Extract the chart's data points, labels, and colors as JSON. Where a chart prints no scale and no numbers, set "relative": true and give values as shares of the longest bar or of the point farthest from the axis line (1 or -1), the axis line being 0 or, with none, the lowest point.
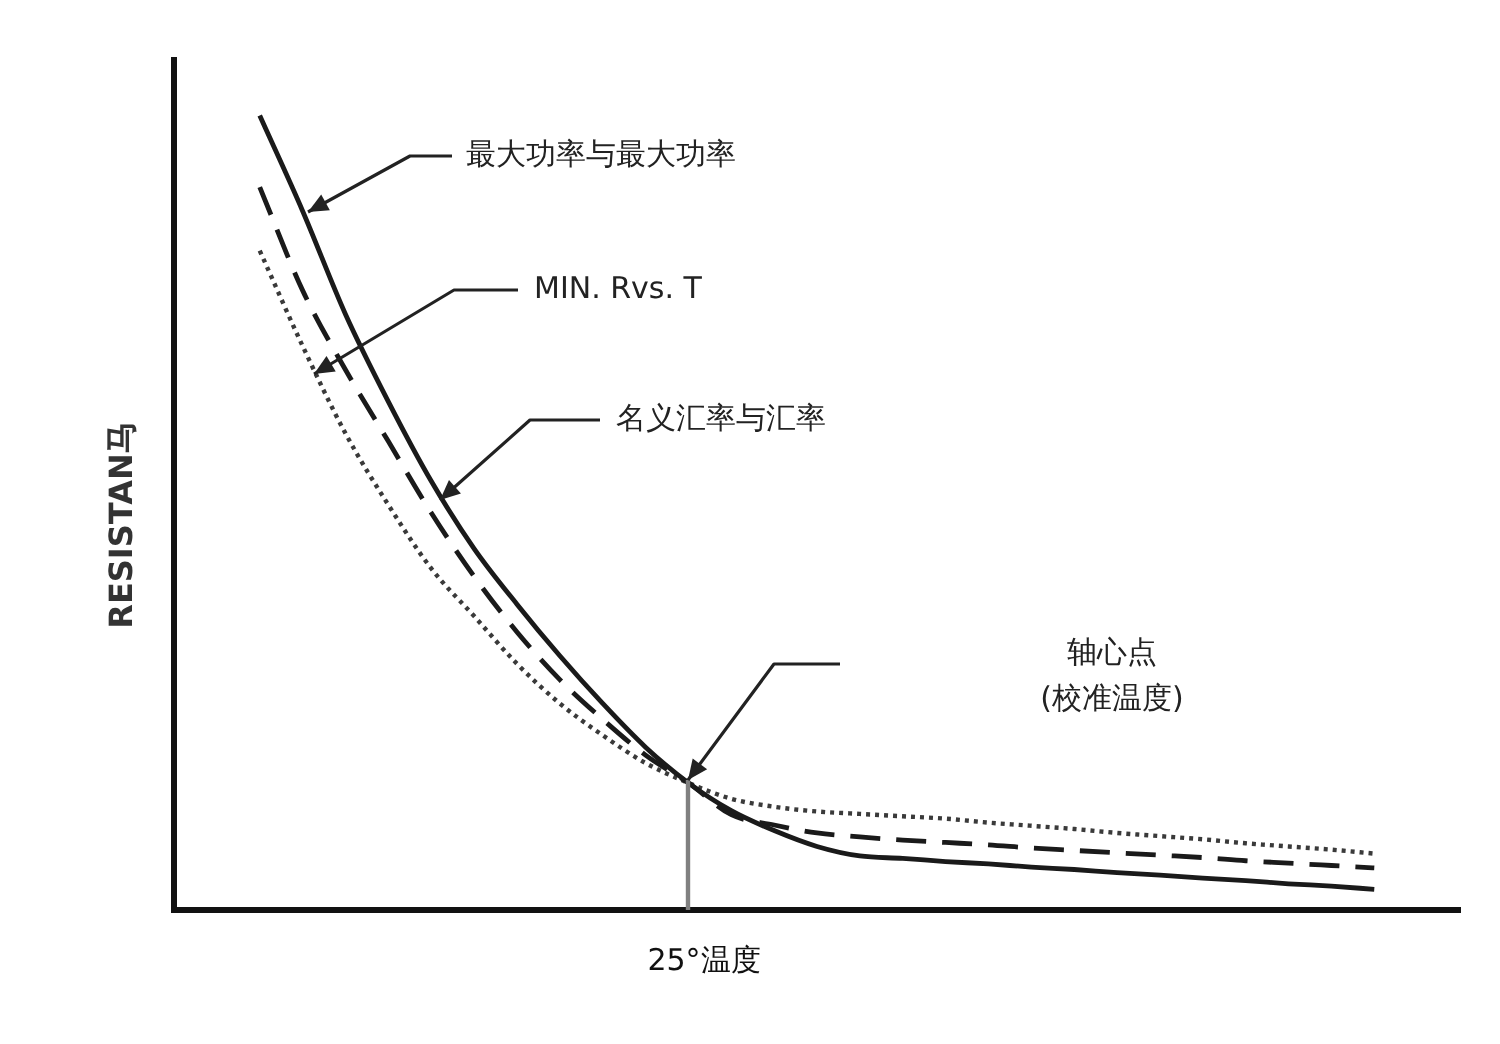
{
  "chart_data": {
    "type": "line",
    "relative": true,
    "xlabel": "25°温度",
    "ylabel": "RESISTAN马",
    "categories": [
      null,
      null,
      null,
      null,
      null,
      null,
      null,
      null,
      null,
      null,
      null,
      null,
      null,
      null,
      null,
      null,
      null,
      null,
      null,
      null,
      null,
      null,
      null,
      null,
      null,
      null,
      null,
      null,
      null,
      null,
      null
    ],
    "series": [
      {
        "color": "#1a1a1a",
        "line_style": "solid",
        "values": [
          null,
          null,
          1,
          0.88,
          0.75,
          0.64,
          0.54,
          0.455,
          0.385,
          0.32,
          0.26,
          0.205,
          0.16,
          0.125,
          0.1,
          0.08,
          0.068,
          0.065,
          0.061,
          0.058,
          0.054,
          0.051,
          0.047,
          0.044,
          0.04,
          0.037,
          0.033,
          0.03,
          0.026,
          null,
          null
        ]
      },
      {
        "color": "#1a1a1a",
        "line_style": "dashed",
        "values": [
          null,
          null,
          0.91,
          0.78,
          0.68,
          0.59,
          0.5,
          0.42,
          0.35,
          0.29,
          0.24,
          0.195,
          0.16,
          0.12,
          0.107,
          0.097,
          0.092,
          0.088,
          0.085,
          0.082,
          0.078,
          0.075,
          0.072,
          0.069,
          0.066,
          0.062,
          0.059,
          0.056,
          0.053,
          null,
          null
        ]
      },
      {
        "color": "#3a3a3a",
        "line_style": "dotted",
        "values": [
          null,
          null,
          0.83,
          0.71,
          0.6,
          0.51,
          0.43,
          0.37,
          0.31,
          0.26,
          0.22,
          0.185,
          0.16,
          0.14,
          0.13,
          0.124,
          0.121,
          0.118,
          0.115,
          0.11,
          0.106,
          0.102,
          0.097,
          0.093,
          0.089,
          0.084,
          0.08,
          0.076,
          0.071,
          null,
          null
        ]
      }
    ],
    "annotations": [
      "最大功率与最大功率",
      "MIN. Rvs. T",
      "名义汇率与汇率",
      "轴心点\n(校准温度)"
    ]
  }
}
